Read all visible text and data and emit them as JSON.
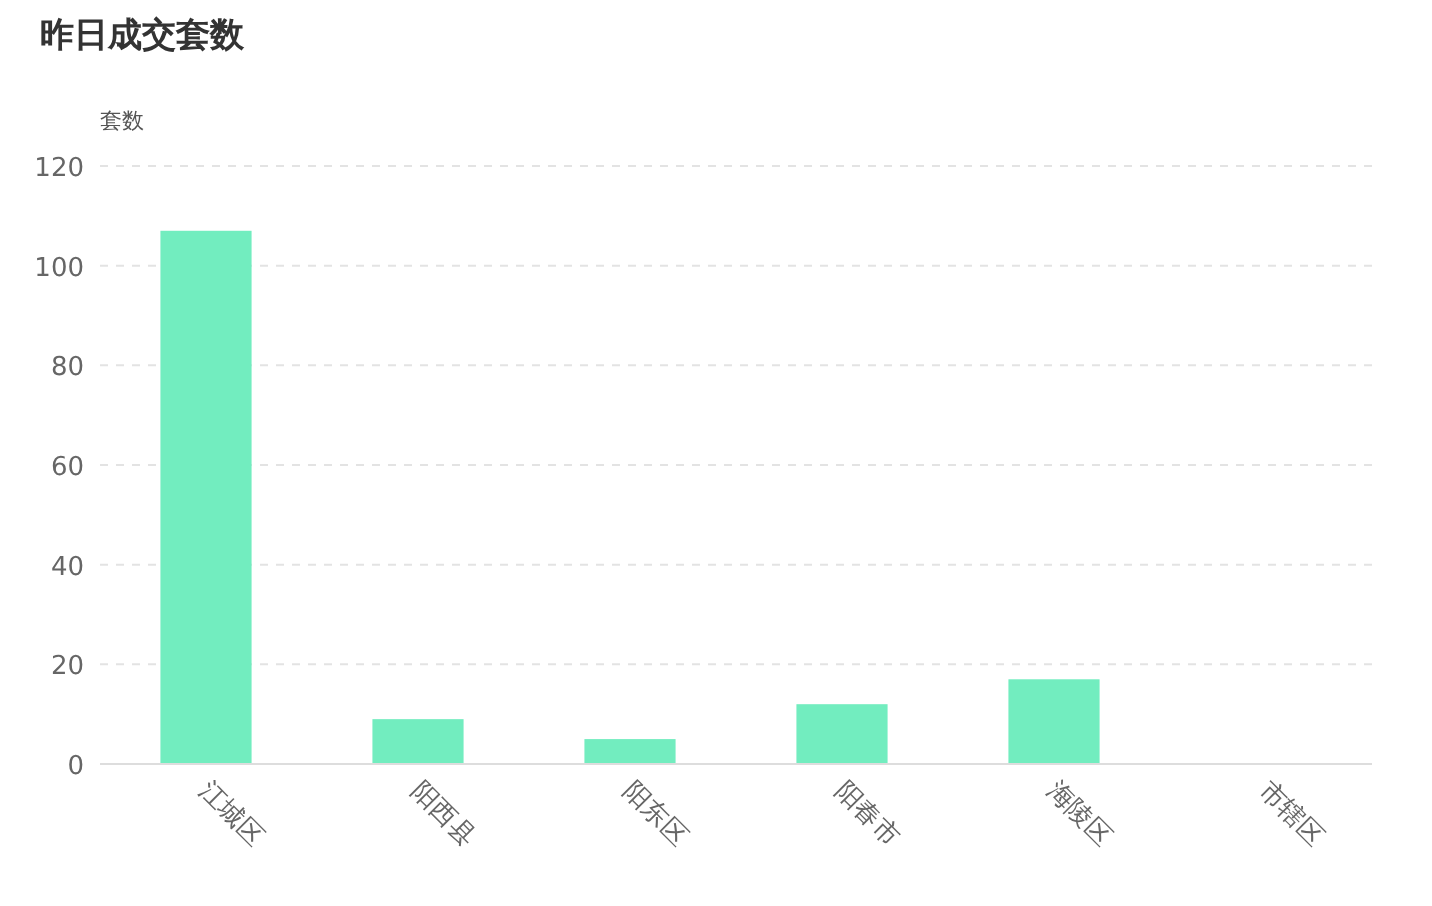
{
  "chart_data": {
    "type": "bar",
    "title": "昨日成交套数",
    "ylabel": "套数",
    "categories": [
      "江城区",
      "阳西县",
      "阳东区",
      "阳春市",
      "海陵区",
      "市辖区"
    ],
    "values": [
      107,
      9,
      5,
      12,
      17,
      0
    ],
    "color": "#72edbf",
    "ylim": [
      0,
      120
    ],
    "yticks": [
      0,
      20,
      40,
      60,
      80,
      100,
      120
    ],
    "grid": "y"
  }
}
